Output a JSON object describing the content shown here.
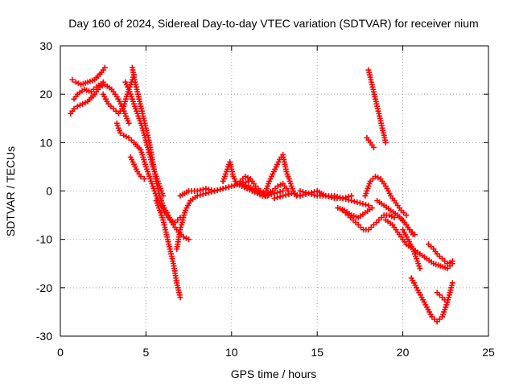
{
  "chart_data": {
    "type": "scatter",
    "title": "Day 160 of 2024, Sidereal Day-to-day VTEC variation (SDTVAR) for receiver nium",
    "xlabel": "GPS time / hours",
    "ylabel": "SDTVAR / TECUs",
    "xlim": [
      0,
      25
    ],
    "ylim": [
      -30,
      30
    ],
    "xticks": [
      0,
      5,
      10,
      15,
      20,
      25
    ],
    "yticks": [
      -30,
      -20,
      -10,
      0,
      10,
      20,
      30
    ],
    "xtick_labels": [
      "0",
      "5",
      "10",
      "15",
      "20",
      "25"
    ],
    "ytick_labels": [
      "-30",
      "-20",
      "-10",
      "0",
      "10",
      "20",
      "30"
    ],
    "grid": true,
    "marker": "+",
    "color": "#ff0000",
    "series": [
      {
        "name": "track-1",
        "x": [
          0.6,
          0.8,
          1.0,
          1.3,
          1.6,
          2.0,
          2.3,
          2.6,
          3.0,
          3.3,
          3.6,
          4.0
        ],
        "y": [
          16,
          17,
          17.5,
          18,
          18.5,
          20,
          21.5,
          22,
          21,
          19.5,
          17.5,
          14
        ]
      },
      {
        "name": "track-2",
        "x": [
          0.7,
          0.9,
          1.2,
          1.6,
          2.0,
          2.4,
          2.6
        ],
        "y": [
          23,
          22.5,
          22,
          22.5,
          23,
          24.5,
          25.5
        ]
      },
      {
        "name": "track-3",
        "x": [
          0.8,
          1.0,
          1.4,
          1.8,
          2.1,
          2.5
        ],
        "y": [
          19,
          20,
          21,
          20.5,
          21.5,
          22.5
        ]
      },
      {
        "name": "track-4",
        "x": [
          2.5,
          2.8,
          3.1,
          3.4,
          3.7,
          4.0,
          4.3
        ],
        "y": [
          20,
          18,
          17,
          16,
          17.5,
          21,
          24
        ]
      },
      {
        "name": "track-5",
        "x": [
          3.3,
          3.5,
          3.7,
          4.0,
          4.3,
          4.7,
          5.0,
          5.3,
          5.6,
          6.0,
          6.4,
          6.7,
          7.0
        ],
        "y": [
          14,
          12,
          11.5,
          11,
          10,
          8.5,
          5,
          2,
          -1,
          -4,
          -6,
          -6.5,
          -5.5
        ]
      },
      {
        "name": "track-6",
        "x": [
          4.2,
          4.4,
          4.6,
          4.8,
          5.0,
          5.2,
          5.4,
          5.6,
          5.8,
          6.0,
          6.3,
          6.6,
          6.9,
          7.2,
          7.5
        ],
        "y": [
          25.5,
          22,
          19,
          16,
          13,
          10,
          6,
          2,
          -1,
          -3,
          -5,
          -7,
          -8.5,
          -9.5,
          -10
        ]
      },
      {
        "name": "track-7",
        "x": [
          3.8,
          4.0,
          4.2,
          4.5,
          4.8,
          5.1,
          5.4,
          5.7,
          6.0
        ],
        "y": [
          22.5,
          21,
          19,
          16,
          13,
          9,
          5,
          2,
          -1
        ]
      },
      {
        "name": "track-8",
        "x": [
          4.1,
          4.3,
          4.5,
          4.7,
          4.9
        ],
        "y": [
          7,
          5.5,
          4,
          3,
          2.5
        ]
      },
      {
        "name": "track-9",
        "x": [
          5.6,
          5.8,
          6.0,
          6.2,
          6.4,
          6.6,
          6.8,
          7.0
        ],
        "y": [
          -2,
          -4,
          -6,
          -9,
          -12,
          -15,
          -19,
          -22
        ]
      },
      {
        "name": "track-10",
        "x": [
          6.8,
          7.0,
          7.3,
          7.6,
          8.0,
          8.5,
          9.0,
          9.5,
          10.0,
          10.5,
          11.0
        ],
        "y": [
          -12,
          -8,
          -4,
          -2,
          -1,
          -0.5,
          0,
          0.5,
          1,
          1.5,
          2
        ]
      },
      {
        "name": "track-11",
        "x": [
          7.0,
          7.5,
          8.0,
          8.5,
          9.0,
          9.5,
          10.0,
          10.5,
          11.0,
          11.5,
          12.0,
          12.5,
          13.0
        ],
        "y": [
          -1,
          0,
          0,
          0.5,
          0,
          0.5,
          1,
          1.5,
          1,
          0,
          -1,
          -0.5,
          0
        ]
      },
      {
        "name": "track-12",
        "x": [
          9.5,
          9.7,
          9.9,
          10.1,
          10.3,
          10.6,
          10.9,
          11.2,
          11.5,
          11.8,
          12.1
        ],
        "y": [
          2,
          4,
          6,
          3,
          1.5,
          1,
          0.5,
          0,
          -0.5,
          -1,
          -1
        ]
      },
      {
        "name": "track-13",
        "x": [
          10.5,
          10.8,
          11.1,
          11.4,
          11.7,
          12.0,
          12.4,
          12.7,
          13.0,
          13.3
        ],
        "y": [
          2,
          3,
          2.5,
          1,
          0,
          -0.5,
          0,
          1,
          1.5,
          0
        ]
      },
      {
        "name": "track-14",
        "x": [
          12.0,
          12.2,
          12.4,
          12.6,
          12.8,
          13.0,
          13.2,
          13.4,
          13.6,
          13.8,
          14.0
        ],
        "y": [
          0,
          2,
          3.5,
          5,
          6.5,
          7.5,
          4,
          2,
          0,
          -1,
          -1
        ]
      },
      {
        "name": "track-15",
        "x": [
          12.5,
          13.0,
          13.5,
          14.0,
          14.5,
          15.0,
          15.5,
          16.0,
          16.5,
          17.0,
          17.5,
          18.0
        ],
        "y": [
          -1.5,
          -1,
          -0.5,
          -1,
          -0.5,
          -1,
          -1,
          -1.5,
          -1.5,
          -2,
          -2.5,
          -3
        ]
      },
      {
        "name": "track-16",
        "x": [
          14.0,
          14.5,
          15.0,
          15.5,
          16.0,
          16.5,
          17.0
        ],
        "y": [
          0,
          -0.5,
          0,
          -1,
          -1,
          -1.5,
          -1
        ]
      },
      {
        "name": "track-17",
        "x": [
          16.5,
          16.8,
          17.1,
          17.4,
          17.7,
          18.0,
          18.3,
          18.6,
          18.9,
          19.2,
          19.5
        ],
        "y": [
          -4,
          -5,
          -6,
          -7,
          -8,
          -8,
          -7,
          -6,
          -5,
          -5,
          -5.5
        ]
      },
      {
        "name": "track-18",
        "x": [
          16.2,
          16.6,
          17.0,
          17.4,
          17.8,
          18.2
        ],
        "y": [
          -3.5,
          -4,
          -5,
          -5.5,
          -4.5,
          -3.5
        ]
      },
      {
        "name": "track-19",
        "x": [
          18.0,
          18.2,
          18.4,
          18.6,
          18.8,
          19.0
        ],
        "y": [
          25,
          22,
          19,
          16,
          13,
          10
        ]
      },
      {
        "name": "track-20",
        "x": [
          17.9,
          18.1,
          18.3
        ],
        "y": [
          11,
          10,
          9
        ]
      },
      {
        "name": "track-21",
        "x": [
          17.8,
          18.1,
          18.4,
          18.7,
          19.0,
          19.3,
          19.6,
          19.9,
          20.2
        ],
        "y": [
          -1,
          2,
          3,
          2.5,
          1,
          -1,
          -2.5,
          -4,
          -5
        ]
      },
      {
        "name": "track-22",
        "x": [
          18.5,
          18.9,
          19.3,
          19.7,
          20.1,
          20.4,
          20.7
        ],
        "y": [
          -2,
          -3,
          -4,
          -5,
          -6.5,
          -8,
          -9
        ]
      },
      {
        "name": "track-23",
        "x": [
          19.0,
          19.4,
          19.8,
          20.2,
          20.6,
          21.0,
          21.4,
          21.8,
          22.2,
          22.6,
          22.9
        ],
        "y": [
          -6,
          -7,
          -9,
          -11,
          -12,
          -13,
          -14,
          -15,
          -15.5,
          -16,
          -15
        ]
      },
      {
        "name": "track-24",
        "x": [
          20.0,
          20.3,
          20.6,
          20.8,
          21.0
        ],
        "y": [
          -8,
          -10,
          -12,
          -14,
          -16
        ]
      },
      {
        "name": "track-25",
        "x": [
          20.5,
          20.8,
          21.1,
          21.4,
          21.7,
          22.0,
          22.3,
          22.6
        ],
        "y": [
          -18,
          -20,
          -22,
          -24,
          -26,
          -27,
          -26,
          -23
        ]
      },
      {
        "name": "track-26",
        "x": [
          21.5,
          21.8,
          22.0,
          22.3,
          22.6,
          22.9
        ],
        "y": [
          -11,
          -12,
          -13,
          -14,
          -15,
          -14.5
        ]
      },
      {
        "name": "track-27",
        "x": [
          22.0,
          22.3,
          22.6,
          22.9
        ],
        "y": [
          -21,
          -22,
          -23,
          -19
        ]
      },
      {
        "name": "track-28",
        "x": [
          20.0,
          20.2,
          20.4,
          20.6
        ],
        "y": [
          -6,
          -7,
          -8,
          -9
        ]
      }
    ]
  }
}
